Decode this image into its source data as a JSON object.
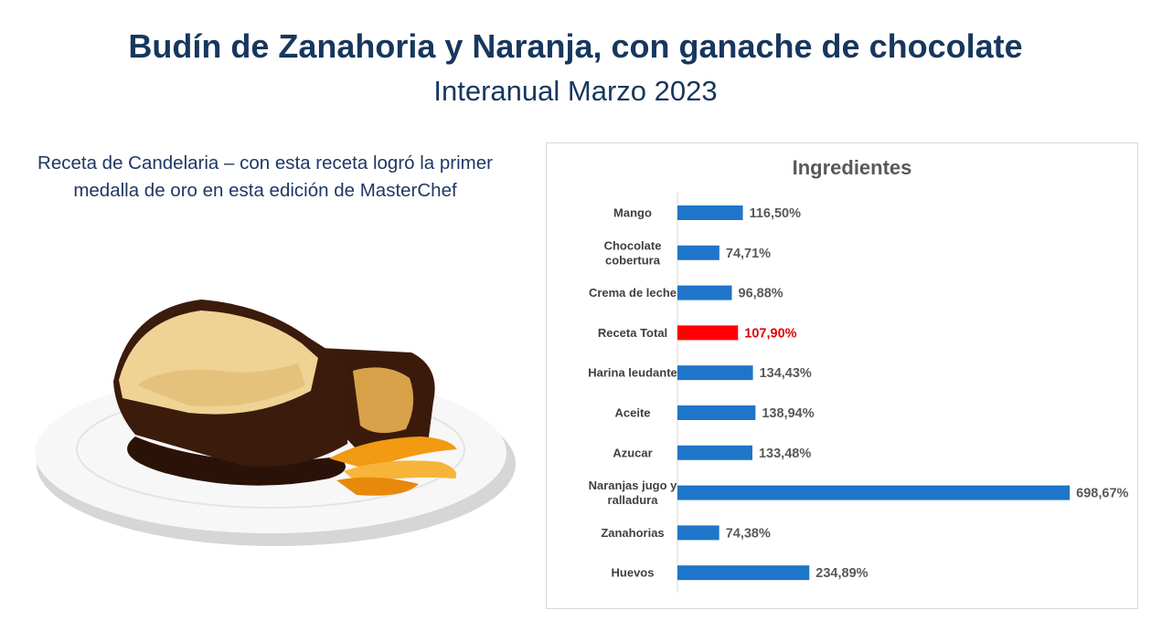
{
  "header": {
    "title": "Budín de Zanahoria y Naranja, con ganache de chocolate",
    "subtitle": "Interanual Marzo 2023"
  },
  "caption": {
    "line1": "Receta de Candelaria – con esta receta logró la primer",
    "line2": "medalla de oro en esta edición de MasterChef"
  },
  "colors": {
    "bar": "#1f75c9",
    "highlight": "#ff0000",
    "title": "#17375e"
  },
  "chart_data": {
    "type": "bar",
    "orientation": "horizontal",
    "title": "Ingredientes",
    "categories": [
      [
        "Mango"
      ],
      [
        "Chocolate",
        "cobertura"
      ],
      [
        "Crema de leche"
      ],
      [
        "Receta Total"
      ],
      [
        "Harina leudante"
      ],
      [
        "Aceite"
      ],
      [
        "Azucar"
      ],
      [
        "Naranjas jugo y",
        "ralladura"
      ],
      [
        "Zanahorias"
      ],
      [
        "Huevos"
      ]
    ],
    "values": [
      116.5,
      74.71,
      96.88,
      107.9,
      134.43,
      138.94,
      133.48,
      698.67,
      74.38,
      234.89
    ],
    "value_labels": [
      "116,50%",
      "74,71%",
      "96,88%",
      "107,90%",
      "134,43%",
      "138,94%",
      "133,48%",
      "698,67%",
      "74,38%",
      "234,89%"
    ],
    "highlight_index": 3,
    "xlim": [
      0,
      700
    ],
    "grid": false,
    "legend": "none"
  }
}
